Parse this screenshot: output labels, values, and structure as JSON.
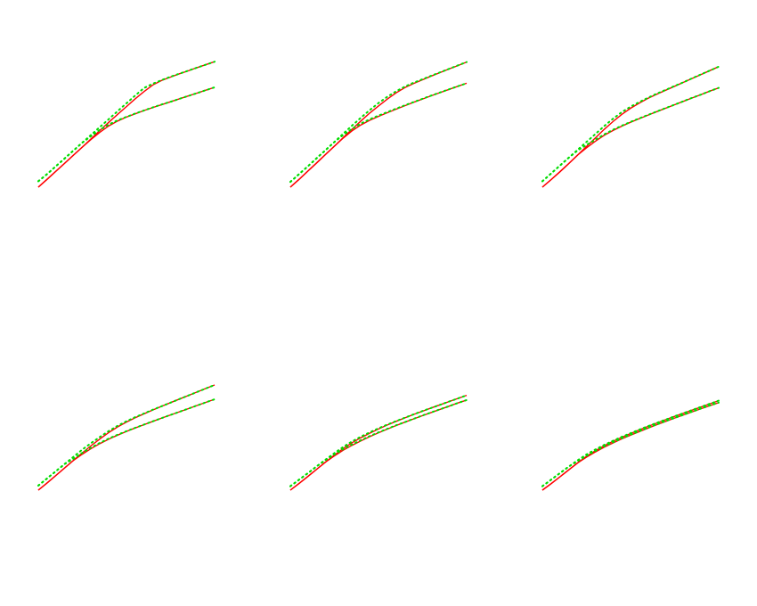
{
  "style": {
    "fitted_color": "#ff0000",
    "asymptote_color": "#00dd00",
    "background": "#ffffff"
  },
  "chart_data": [
    {
      "type": "line",
      "panel": 1,
      "x": [
        0,
        0.05,
        0.1,
        0.15,
        0.2,
        0.25,
        0.3,
        0.35,
        0.4,
        0.45,
        0.5,
        0.55,
        0.6,
        0.65,
        0.7,
        0.75,
        0.8,
        0.85,
        0.9,
        0.95,
        1.0
      ],
      "series": [
        {
          "values": [
            0.0,
            0.06,
            0.122,
            0.183,
            0.245,
            0.306,
            0.37,
            0.433,
            0.495,
            0.556,
            0.615,
            0.675,
            0.73,
            0.78,
            0.815,
            0.84,
            0.865,
            0.888,
            0.912,
            0.935,
            0.958
          ],
          "style": "solid"
        },
        {
          "values": [
            0.0,
            0.06,
            0.122,
            0.183,
            0.245,
            0.306,
            0.365,
            0.42,
            0.468,
            0.505,
            0.535,
            0.56,
            0.585,
            0.608,
            0.63,
            0.652,
            0.674,
            0.696,
            0.718,
            0.74,
            0.762
          ],
          "style": "solid"
        },
        {
          "values": [
            0.045,
            0.1,
            0.16,
            0.22,
            0.28,
            0.34,
            0.4,
            0.46,
            0.52,
            0.58,
            0.64,
            0.7,
            0.757,
            0.79,
            0.818,
            0.843,
            0.866,
            0.889,
            0.912,
            0.935,
            0.958
          ],
          "style": "dotted"
        },
        {
          "values": [
            0.045,
            0.1,
            0.16,
            0.22,
            0.28,
            0.34,
            0.39,
            0.438,
            0.478,
            0.51,
            0.537,
            0.562,
            0.586,
            0.609,
            0.631,
            0.652,
            0.674,
            0.696,
            0.718,
            0.74,
            0.762
          ],
          "style": "dotted"
        }
      ]
    },
    {
      "type": "line",
      "panel": 2,
      "x": [
        0,
        0.05,
        0.1,
        0.15,
        0.2,
        0.25,
        0.3,
        0.35,
        0.4,
        0.45,
        0.5,
        0.55,
        0.6,
        0.65,
        0.7,
        0.75,
        0.8,
        0.85,
        0.9,
        0.95,
        1.0
      ],
      "series": [
        {
          "values": [
            0.0,
            0.06,
            0.123,
            0.186,
            0.25,
            0.313,
            0.378,
            0.442,
            0.505,
            0.565,
            0.62,
            0.672,
            0.72,
            0.76,
            0.792,
            0.82,
            0.848,
            0.875,
            0.902,
            0.928,
            0.955
          ],
          "style": "solid"
        },
        {
          "values": [
            0.0,
            0.06,
            0.123,
            0.186,
            0.25,
            0.313,
            0.375,
            0.43,
            0.475,
            0.51,
            0.54,
            0.568,
            0.595,
            0.622,
            0.648,
            0.673,
            0.698,
            0.722,
            0.746,
            0.77,
            0.793
          ],
          "style": "solid"
        },
        {
          "values": [
            0.04,
            0.1,
            0.16,
            0.222,
            0.283,
            0.345,
            0.408,
            0.47,
            0.53,
            0.588,
            0.642,
            0.69,
            0.732,
            0.768,
            0.798,
            0.824,
            0.851,
            0.877,
            0.903,
            0.929,
            0.955
          ],
          "style": "dotted"
        },
        {
          "values": [
            0.04,
            0.1,
            0.16,
            0.222,
            0.283,
            0.345,
            0.398,
            0.445,
            0.486,
            0.518,
            0.546,
            0.573,
            0.599,
            0.625,
            0.65,
            0.675,
            0.699,
            0.723,
            0.747,
            0.77,
            0.793
          ],
          "style": "dotted"
        }
      ]
    },
    {
      "type": "line",
      "panel": 3,
      "x": [
        0,
        0.05,
        0.1,
        0.15,
        0.2,
        0.25,
        0.3,
        0.35,
        0.4,
        0.45,
        0.5,
        0.55,
        0.6,
        0.65,
        0.7,
        0.75,
        0.8,
        0.85,
        0.9,
        0.95,
        1.0
      ],
      "series": [
        {
          "values": [
            0.0,
            0.058,
            0.118,
            0.18,
            0.245,
            0.31,
            0.375,
            0.44,
            0.5,
            0.555,
            0.602,
            0.642,
            0.678,
            0.71,
            0.74,
            0.77,
            0.8,
            0.83,
            0.86,
            0.89,
            0.92
          ],
          "style": "solid"
        },
        {
          "values": [
            0.0,
            0.058,
            0.118,
            0.18,
            0.245,
            0.3,
            0.35,
            0.395,
            0.432,
            0.465,
            0.495,
            0.523,
            0.55,
            0.577,
            0.603,
            0.629,
            0.655,
            0.681,
            0.707,
            0.733,
            0.758
          ],
          "style": "solid"
        },
        {
          "values": [
            0.045,
            0.105,
            0.165,
            0.225,
            0.285,
            0.345,
            0.405,
            0.465,
            0.522,
            0.572,
            0.614,
            0.65,
            0.683,
            0.714,
            0.743,
            0.772,
            0.801,
            0.831,
            0.861,
            0.89,
            0.92
          ],
          "style": "dotted"
        },
        {
          "values": [
            0.045,
            0.105,
            0.165,
            0.225,
            0.28,
            0.322,
            0.362,
            0.402,
            0.438,
            0.469,
            0.498,
            0.525,
            0.552,
            0.578,
            0.604,
            0.63,
            0.656,
            0.682,
            0.707,
            0.733,
            0.758
          ],
          "style": "dotted"
        }
      ]
    },
    {
      "type": "line",
      "panel": 4,
      "x": [
        0,
        0.05,
        0.1,
        0.15,
        0.2,
        0.25,
        0.3,
        0.35,
        0.4,
        0.45,
        0.5,
        0.55,
        0.6,
        0.65,
        0.7,
        0.75,
        0.8,
        0.85,
        0.9,
        0.95,
        1.0
      ],
      "series": [
        {
          "values": [
            0.0,
            0.055,
            0.112,
            0.17,
            0.228,
            0.285,
            0.34,
            0.392,
            0.44,
            0.483,
            0.52,
            0.553,
            0.583,
            0.612,
            0.64,
            0.668,
            0.695,
            0.722,
            0.749,
            0.776,
            0.803
          ],
          "style": "solid"
        },
        {
          "values": [
            0.0,
            0.055,
            0.112,
            0.17,
            0.228,
            0.275,
            0.318,
            0.356,
            0.39,
            0.42,
            0.448,
            0.475,
            0.5,
            0.525,
            0.55,
            0.574,
            0.598,
            0.622,
            0.646,
            0.67,
            0.694
          ],
          "style": "solid"
        },
        {
          "values": [
            0.035,
            0.09,
            0.145,
            0.2,
            0.255,
            0.31,
            0.36,
            0.407,
            0.452,
            0.491,
            0.526,
            0.557,
            0.586,
            0.614,
            0.641,
            0.668,
            0.695,
            0.722,
            0.749,
            0.776,
            0.803
          ],
          "style": "dotted"
        },
        {
          "values": [
            0.035,
            0.09,
            0.145,
            0.2,
            0.24,
            0.285,
            0.325,
            0.361,
            0.394,
            0.423,
            0.45,
            0.476,
            0.501,
            0.526,
            0.55,
            0.574,
            0.598,
            0.622,
            0.646,
            0.67,
            0.694
          ],
          "style": "dotted"
        }
      ]
    },
    {
      "type": "line",
      "panel": 5,
      "x": [
        0,
        0.05,
        0.1,
        0.15,
        0.2,
        0.25,
        0.3,
        0.35,
        0.4,
        0.45,
        0.5,
        0.55,
        0.6,
        0.65,
        0.7,
        0.75,
        0.8,
        0.85,
        0.9,
        0.95,
        1.0
      ],
      "series": [
        {
          "values": [
            0.0,
            0.052,
            0.105,
            0.16,
            0.215,
            0.268,
            0.318,
            0.362,
            0.4,
            0.435,
            0.467,
            0.497,
            0.525,
            0.552,
            0.578,
            0.603,
            0.628,
            0.652,
            0.676,
            0.7,
            0.724
          ],
          "style": "solid"
        },
        {
          "values": [
            0.0,
            0.052,
            0.105,
            0.16,
            0.215,
            0.262,
            0.305,
            0.342,
            0.376,
            0.408,
            0.438,
            0.466,
            0.493,
            0.519,
            0.544,
            0.569,
            0.593,
            0.617,
            0.641,
            0.665,
            0.688
          ],
          "style": "solid"
        },
        {
          "values": [
            0.03,
            0.08,
            0.13,
            0.182,
            0.233,
            0.283,
            0.33,
            0.372,
            0.408,
            0.441,
            0.472,
            0.5,
            0.527,
            0.553,
            0.579,
            0.604,
            0.628,
            0.652,
            0.676,
            0.7,
            0.724
          ],
          "style": "dotted"
        },
        {
          "values": [
            0.03,
            0.08,
            0.13,
            0.182,
            0.23,
            0.273,
            0.313,
            0.349,
            0.381,
            0.412,
            0.441,
            0.468,
            0.495,
            0.52,
            0.545,
            0.57,
            0.594,
            0.618,
            0.641,
            0.665,
            0.688
          ],
          "style": "dotted"
        }
      ]
    },
    {
      "type": "line",
      "panel": 6,
      "x": [
        0,
        0.05,
        0.1,
        0.15,
        0.2,
        0.25,
        0.3,
        0.35,
        0.4,
        0.45,
        0.5,
        0.55,
        0.6,
        0.65,
        0.7,
        0.75,
        0.8,
        0.85,
        0.9,
        0.95,
        1.0
      ],
      "series": [
        {
          "values": [
            0.0,
            0.05,
            0.102,
            0.155,
            0.208,
            0.258,
            0.3,
            0.338,
            0.372,
            0.403,
            0.432,
            0.46,
            0.487,
            0.513,
            0.538,
            0.563,
            0.587,
            0.611,
            0.635,
            0.659,
            0.683
          ],
          "style": "solid"
        },
        {
          "values": [
            0.0,
            0.05,
            0.102,
            0.155,
            0.208,
            0.252,
            0.291,
            0.327,
            0.36,
            0.391,
            0.42,
            0.447,
            0.474,
            0.5,
            0.525,
            0.55,
            0.574,
            0.598,
            0.622,
            0.645,
            0.668
          ],
          "style": "solid"
        },
        {
          "values": [
            0.03,
            0.08,
            0.13,
            0.18,
            0.228,
            0.272,
            0.31,
            0.345,
            0.377,
            0.407,
            0.435,
            0.462,
            0.489,
            0.514,
            0.539,
            0.564,
            0.588,
            0.612,
            0.636,
            0.66,
            0.683
          ],
          "style": "dotted"
        },
        {
          "values": [
            0.03,
            0.08,
            0.13,
            0.18,
            0.222,
            0.262,
            0.299,
            0.333,
            0.365,
            0.395,
            0.423,
            0.45,
            0.476,
            0.502,
            0.527,
            0.551,
            0.575,
            0.599,
            0.623,
            0.646,
            0.668
          ],
          "style": "dotted"
        }
      ]
    }
  ]
}
